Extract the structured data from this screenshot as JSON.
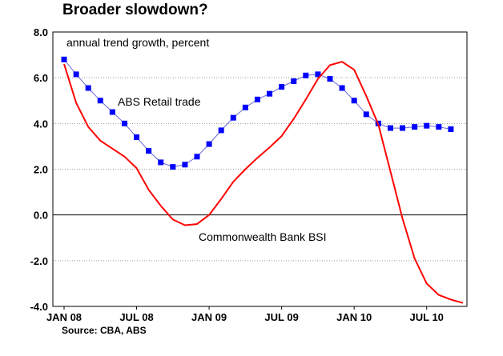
{
  "chart_data": {
    "type": "line",
    "title": "Broader slowdown?",
    "subtitle": "annual trend growth, percent",
    "source": "Source: CBA, ABS",
    "ylim": [
      -4.0,
      8.0
    ],
    "y_ticks": [
      "8.0",
      "6.0",
      "4.0",
      "2.0",
      "0.0",
      "-2.0",
      "-4.0"
    ],
    "y_tick_values": [
      8,
      6,
      4,
      2,
      0,
      -2,
      -4
    ],
    "x_tick_labels": [
      "JAN 08",
      "JUL 08",
      "JAN 09",
      "JUL 09",
      "JAN 10",
      "JUL 10"
    ],
    "x_tick_dates": [
      "2008-01",
      "2008-07",
      "2009-01",
      "2009-07",
      "2010-01",
      "2010-07"
    ],
    "xlim": [
      "2008-01",
      "2010-10"
    ],
    "grid": true,
    "annotations": [
      "ABS Retail trade",
      "Commonwealth Bank BSI"
    ],
    "series": [
      {
        "name": "ABS Retail trade",
        "color": "#0000ff",
        "line_color": "#6a6ad8",
        "marker": "square",
        "x": [
          "2008-01",
          "2008-02",
          "2008-03",
          "2008-04",
          "2008-05",
          "2008-06",
          "2008-07",
          "2008-08",
          "2008-09",
          "2008-10",
          "2008-11",
          "2008-12",
          "2009-01",
          "2009-02",
          "2009-03",
          "2009-04",
          "2009-05",
          "2009-06",
          "2009-07",
          "2009-08",
          "2009-09",
          "2009-10",
          "2009-11",
          "2009-12",
          "2010-01",
          "2010-02",
          "2010-03",
          "2010-04",
          "2010-05",
          "2010-06",
          "2010-07",
          "2010-08",
          "2010-09"
        ],
        "values": [
          6.8,
          6.15,
          5.55,
          5.0,
          4.5,
          4.0,
          3.4,
          2.8,
          2.3,
          2.1,
          2.2,
          2.55,
          3.1,
          3.7,
          4.25,
          4.7,
          5.05,
          5.3,
          5.6,
          5.85,
          6.1,
          6.15,
          5.95,
          5.55,
          5.0,
          4.4,
          4.0,
          3.8,
          3.8,
          3.85,
          3.9,
          3.85,
          3.75
        ]
      },
      {
        "name": "Commonwealth Bank BSI",
        "color": "#ff0000",
        "marker": "none",
        "x": [
          "2008-01",
          "2008-02",
          "2008-03",
          "2008-04",
          "2008-05",
          "2008-06",
          "2008-07",
          "2008-08",
          "2008-09",
          "2008-10",
          "2008-11",
          "2008-12",
          "2009-01",
          "2009-02",
          "2009-03",
          "2009-04",
          "2009-05",
          "2009-06",
          "2009-07",
          "2009-08",
          "2009-09",
          "2009-10",
          "2009-11",
          "2009-12",
          "2010-01",
          "2010-02",
          "2010-03",
          "2010-04",
          "2010-05",
          "2010-06",
          "2010-07",
          "2010-08",
          "2010-09",
          "2010-10"
        ],
        "values": [
          6.6,
          4.9,
          3.85,
          3.25,
          2.9,
          2.55,
          2.05,
          1.1,
          0.4,
          -0.2,
          -0.45,
          -0.4,
          0.0,
          0.7,
          1.45,
          2.0,
          2.5,
          2.95,
          3.45,
          4.2,
          5.05,
          5.95,
          6.55,
          6.7,
          6.35,
          5.2,
          3.95,
          1.9,
          -0.15,
          -1.9,
          -3.0,
          -3.5,
          -3.7,
          -3.85
        ]
      }
    ]
  }
}
